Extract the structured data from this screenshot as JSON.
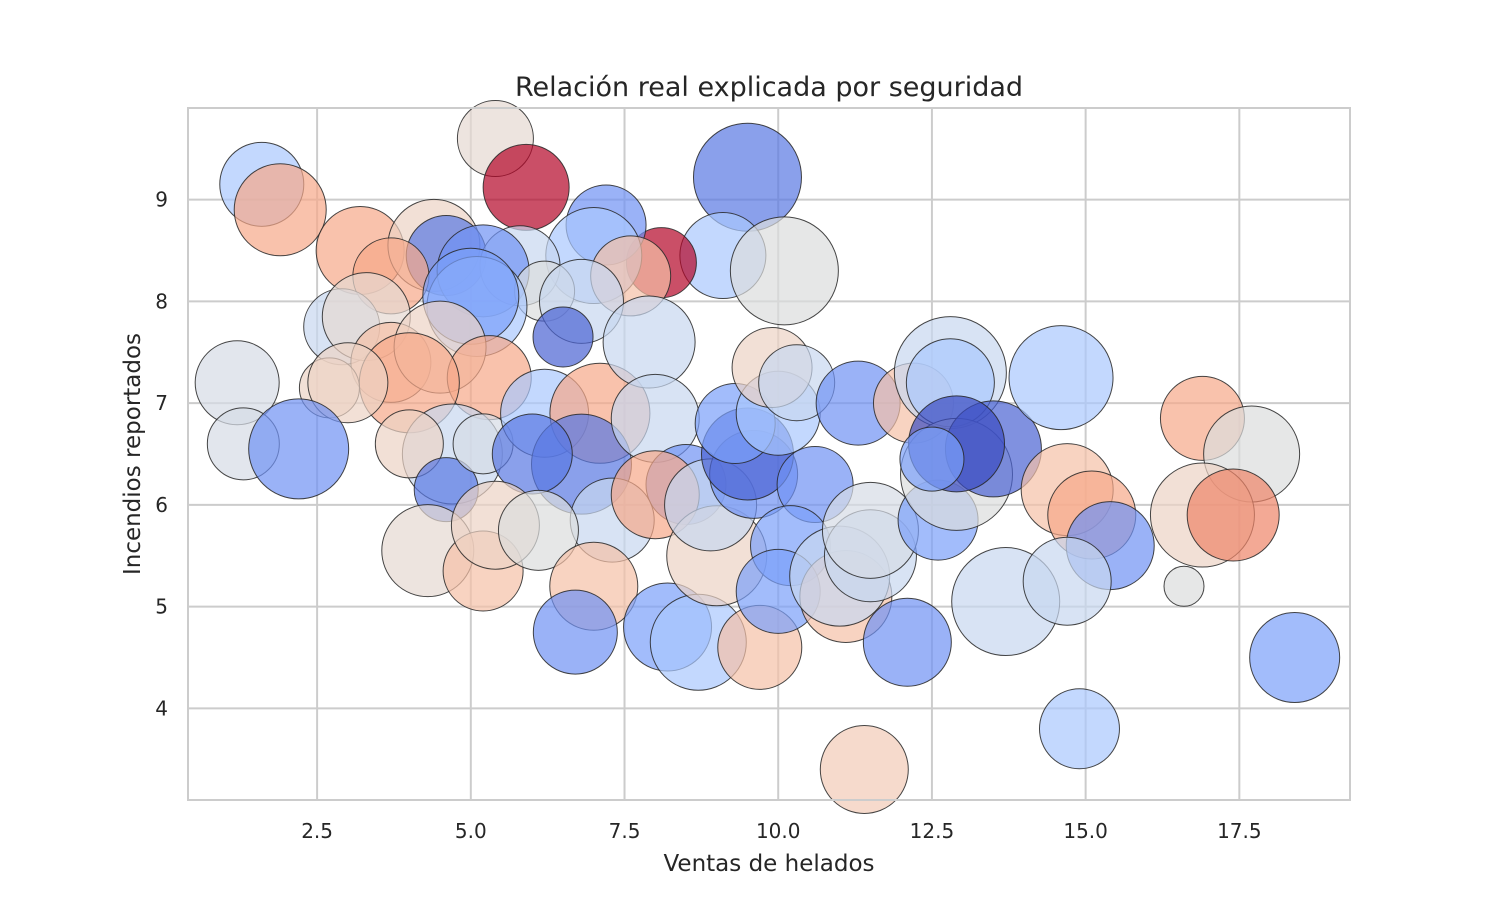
{
  "chart_data": {
    "type": "scatter",
    "title": "Relación real explicada por seguridad",
    "xlabel": "Ventas de helados",
    "ylabel": "Incendios reportados",
    "xlim": [
      0.4,
      19.3
    ],
    "ylim": [
      3.1,
      9.9
    ],
    "x_ticks": [
      2.5,
      5.0,
      7.5,
      10.0,
      12.5,
      15.0,
      17.5
    ],
    "x_tick_labels": [
      "2.5",
      "5.0",
      "7.5",
      "10.0",
      "12.5",
      "15.0",
      "17.5"
    ],
    "y_ticks": [
      4,
      5,
      6,
      7,
      8,
      9
    ],
    "y_tick_labels": [
      "4",
      "5",
      "6",
      "7",
      "8",
      "9"
    ],
    "grid": true,
    "legend": "none",
    "colormap": "coolwarm",
    "marker_edge_color": "#262626",
    "marker_alpha": 0.7,
    "points": [
      {
        "x": 1.6,
        "y": 9.15,
        "size": 42,
        "color": "#aac7fd"
      },
      {
        "x": 1.9,
        "y": 8.9,
        "size": 46,
        "color": "#f7a889"
      },
      {
        "x": 5.4,
        "y": 9.6,
        "size": 38,
        "color": "#e5d8d1"
      },
      {
        "x": 5.9,
        "y": 9.12,
        "size": 43,
        "color": "#b40426"
      },
      {
        "x": 9.5,
        "y": 9.22,
        "size": 54,
        "color": "#5977e3"
      },
      {
        "x": 9.1,
        "y": 8.45,
        "size": 43,
        "color": "#aac7fd"
      },
      {
        "x": 10.1,
        "y": 8.3,
        "size": 54,
        "color": "#dcdddd"
      },
      {
        "x": 8.1,
        "y": 8.38,
        "size": 35,
        "color": "#b40426"
      },
      {
        "x": 7.2,
        "y": 8.75,
        "size": 40,
        "color": "#6f92f3"
      },
      {
        "x": 7.0,
        "y": 8.45,
        "size": 48,
        "color": "#aac7fd"
      },
      {
        "x": 3.2,
        "y": 8.5,
        "size": 44,
        "color": "#f7a889"
      },
      {
        "x": 4.4,
        "y": 8.55,
        "size": 46,
        "color": "#ecd3c5"
      },
      {
        "x": 4.6,
        "y": 8.45,
        "size": 40,
        "color": "#5977e3"
      },
      {
        "x": 5.8,
        "y": 8.35,
        "size": 40,
        "color": "#c7d7f0"
      },
      {
        "x": 5.2,
        "y": 8.3,
        "size": 46,
        "color": "#6f92f3"
      },
      {
        "x": 3.7,
        "y": 8.25,
        "size": 38,
        "color": "#f7a889"
      },
      {
        "x": 7.6,
        "y": 8.25,
        "size": 40,
        "color": "#f5c0a7"
      },
      {
        "x": 6.2,
        "y": 8.1,
        "size": 30,
        "color": "#dcdddd"
      },
      {
        "x": 5.1,
        "y": 7.95,
        "size": 50,
        "color": "#aac7fd"
      },
      {
        "x": 5.0,
        "y": 8.05,
        "size": 48,
        "color": "#7b9ff9"
      },
      {
        "x": 2.9,
        "y": 7.75,
        "size": 38,
        "color": "#c7d7f0"
      },
      {
        "x": 3.3,
        "y": 7.85,
        "size": 44,
        "color": "#e5d8d1"
      },
      {
        "x": 6.8,
        "y": 8.0,
        "size": 42,
        "color": "#c7d7f0"
      },
      {
        "x": 6.5,
        "y": 7.65,
        "size": 30,
        "color": "#4a63d3"
      },
      {
        "x": 3.7,
        "y": 7.4,
        "size": 40,
        "color": "#f5c0a7"
      },
      {
        "x": 4.5,
        "y": 7.55,
        "size": 46,
        "color": "#ecd3c5"
      },
      {
        "x": 5.3,
        "y": 7.25,
        "size": 42,
        "color": "#f7a889"
      },
      {
        "x": 4.0,
        "y": 7.2,
        "size": 50,
        "color": "#f7a889"
      },
      {
        "x": 2.7,
        "y": 7.15,
        "size": 30,
        "color": "#ecd3c5"
      },
      {
        "x": 3.0,
        "y": 7.2,
        "size": 40,
        "color": "#ecd3c5"
      },
      {
        "x": 1.2,
        "y": 7.2,
        "size": 42,
        "color": "#d5dbe5"
      },
      {
        "x": 1.3,
        "y": 6.6,
        "size": 36,
        "color": "#d5dbe5"
      },
      {
        "x": 2.2,
        "y": 6.55,
        "size": 50,
        "color": "#6f92f3"
      },
      {
        "x": 4.7,
        "y": 6.5,
        "size": 50,
        "color": "#c7d7f0"
      },
      {
        "x": 4.0,
        "y": 6.6,
        "size": 34,
        "color": "#ecd3c5"
      },
      {
        "x": 4.6,
        "y": 6.15,
        "size": 32,
        "color": "#5977e3"
      },
      {
        "x": 5.2,
        "y": 6.6,
        "size": 30,
        "color": "#d5dbe5"
      },
      {
        "x": 6.2,
        "y": 6.9,
        "size": 44,
        "color": "#aac7fd"
      },
      {
        "x": 7.1,
        "y": 6.9,
        "size": 50,
        "color": "#f7a889"
      },
      {
        "x": 6.8,
        "y": 6.4,
        "size": 50,
        "color": "#5977e3"
      },
      {
        "x": 6.0,
        "y": 6.5,
        "size": 40,
        "color": "#5977e3"
      },
      {
        "x": 7.9,
        "y": 7.6,
        "size": 46,
        "color": "#c7d7f0"
      },
      {
        "x": 8.0,
        "y": 6.85,
        "size": 44,
        "color": "#c7d7f0"
      },
      {
        "x": 8.5,
        "y": 6.2,
        "size": 40,
        "color": "#6f92f3"
      },
      {
        "x": 7.3,
        "y": 5.85,
        "size": 42,
        "color": "#c7d7f0"
      },
      {
        "x": 8.0,
        "y": 6.1,
        "size": 44,
        "color": "#f7a889"
      },
      {
        "x": 4.3,
        "y": 5.55,
        "size": 46,
        "color": "#e5d8d1"
      },
      {
        "x": 5.2,
        "y": 5.35,
        "size": 40,
        "color": "#f5c0a7"
      },
      {
        "x": 5.4,
        "y": 5.8,
        "size": 44,
        "color": "#ecd3c5"
      },
      {
        "x": 6.1,
        "y": 5.75,
        "size": 40,
        "color": "#dcdddd"
      },
      {
        "x": 7.0,
        "y": 5.2,
        "size": 44,
        "color": "#f5c0a7"
      },
      {
        "x": 6.7,
        "y": 4.75,
        "size": 42,
        "color": "#6f92f3"
      },
      {
        "x": 8.2,
        "y": 4.8,
        "size": 44,
        "color": "#7b9ff9"
      },
      {
        "x": 8.7,
        "y": 4.65,
        "size": 48,
        "color": "#aac7fd"
      },
      {
        "x": 9.7,
        "y": 4.6,
        "size": 42,
        "color": "#f5c0a7"
      },
      {
        "x": 9.0,
        "y": 5.5,
        "size": 50,
        "color": "#ecd3c5"
      },
      {
        "x": 8.9,
        "y": 6.0,
        "size": 46,
        "color": "#c7d7f0"
      },
      {
        "x": 9.6,
        "y": 6.3,
        "size": 44,
        "color": "#6f92f3"
      },
      {
        "x": 9.5,
        "y": 6.5,
        "size": 46,
        "color": "#4a63d3"
      },
      {
        "x": 9.3,
        "y": 6.8,
        "size": 40,
        "color": "#7b9ff9"
      },
      {
        "x": 10.0,
        "y": 6.9,
        "size": 42,
        "color": "#aac7fd"
      },
      {
        "x": 9.9,
        "y": 7.35,
        "size": 40,
        "color": "#ecd3c5"
      },
      {
        "x": 10.3,
        "y": 7.2,
        "size": 38,
        "color": "#c7d7f0"
      },
      {
        "x": 10.6,
        "y": 6.2,
        "size": 38,
        "color": "#6f92f3"
      },
      {
        "x": 10.2,
        "y": 5.6,
        "size": 40,
        "color": "#7b9ff9"
      },
      {
        "x": 10.0,
        "y": 5.15,
        "size": 42,
        "color": "#7b9ff9"
      },
      {
        "x": 11.1,
        "y": 5.1,
        "size": 46,
        "color": "#f5c0a7"
      },
      {
        "x": 11.0,
        "y": 5.3,
        "size": 50,
        "color": "#c7d7f0"
      },
      {
        "x": 11.5,
        "y": 5.5,
        "size": 46,
        "color": "#c7d7f0"
      },
      {
        "x": 11.5,
        "y": 5.75,
        "size": 48,
        "color": "#d5dbe5"
      },
      {
        "x": 12.1,
        "y": 4.65,
        "size": 44,
        "color": "#6f92f3"
      },
      {
        "x": 11.4,
        "y": 3.4,
        "size": 44,
        "color": "#f2cbb7"
      },
      {
        "x": 11.3,
        "y": 7.0,
        "size": 42,
        "color": "#6f92f3"
      },
      {
        "x": 12.2,
        "y": 7.0,
        "size": 40,
        "color": "#f5c0a7"
      },
      {
        "x": 12.8,
        "y": 7.3,
        "size": 56,
        "color": "#c7d7f0"
      },
      {
        "x": 12.8,
        "y": 7.2,
        "size": 44,
        "color": "#aac7fd"
      },
      {
        "x": 12.6,
        "y": 5.85,
        "size": 40,
        "color": "#7b9ff9"
      },
      {
        "x": 12.9,
        "y": 6.3,
        "size": 56,
        "color": "#dcdddd"
      },
      {
        "x": 13.5,
        "y": 6.55,
        "size": 48,
        "color": "#4a63d3"
      },
      {
        "x": 12.9,
        "y": 6.6,
        "size": 48,
        "color": "#3b4cc0"
      },
      {
        "x": 12.5,
        "y": 6.45,
        "size": 32,
        "color": "#7b9ff9"
      },
      {
        "x": 13.7,
        "y": 5.05,
        "size": 54,
        "color": "#c7d7f0"
      },
      {
        "x": 14.6,
        "y": 7.25,
        "size": 52,
        "color": "#aac7fd"
      },
      {
        "x": 14.7,
        "y": 6.15,
        "size": 46,
        "color": "#f5c0a7"
      },
      {
        "x": 15.1,
        "y": 5.9,
        "size": 44,
        "color": "#f7a889"
      },
      {
        "x": 15.4,
        "y": 5.6,
        "size": 44,
        "color": "#6f92f3"
      },
      {
        "x": 14.7,
        "y": 5.25,
        "size": 44,
        "color": "#c7d7f0"
      },
      {
        "x": 14.9,
        "y": 3.8,
        "size": 40,
        "color": "#aac7fd"
      },
      {
        "x": 16.6,
        "y": 5.2,
        "size": 20,
        "color": "#dcdddd"
      },
      {
        "x": 16.9,
        "y": 6.85,
        "size": 42,
        "color": "#f7a889"
      },
      {
        "x": 17.7,
        "y": 6.5,
        "size": 48,
        "color": "#dcdddd"
      },
      {
        "x": 16.9,
        "y": 5.9,
        "size": 52,
        "color": "#ecd3c5"
      },
      {
        "x": 17.4,
        "y": 5.9,
        "size": 46,
        "color": "#ee8468"
      },
      {
        "x": 18.4,
        "y": 4.5,
        "size": 45,
        "color": "#7b9ff9"
      }
    ]
  }
}
